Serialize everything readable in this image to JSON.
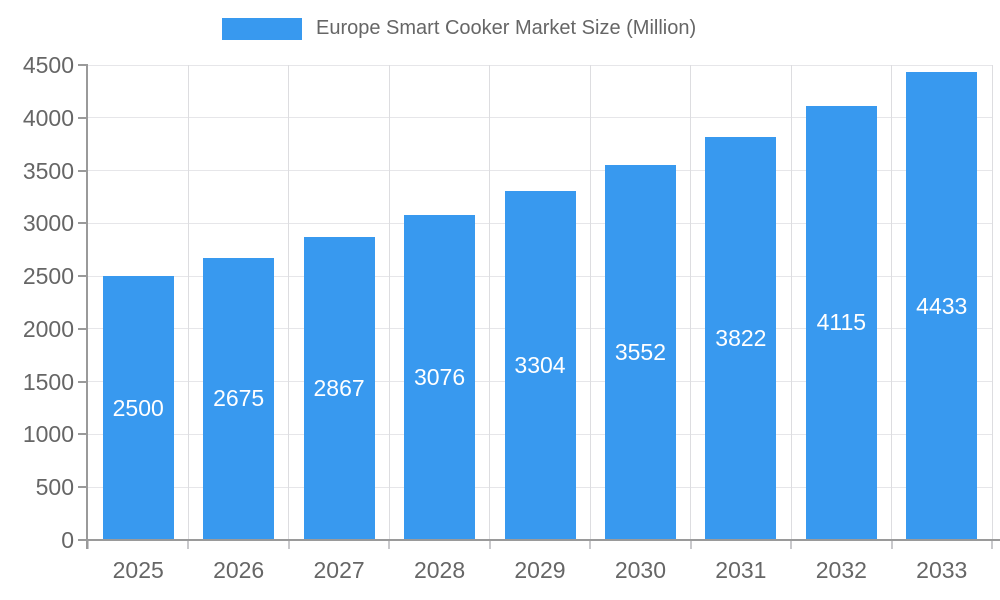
{
  "chart_data": {
    "type": "bar",
    "title": "Europe Smart Cooker Market Size (Million)",
    "categories": [
      "2025",
      "2026",
      "2027",
      "2028",
      "2029",
      "2030",
      "2031",
      "2032",
      "2033"
    ],
    "values": [
      2500,
      2675,
      2867,
      3076,
      3304,
      3552,
      3822,
      4115,
      4433
    ],
    "xlabel": "",
    "ylabel": "",
    "ylim": [
      0,
      4500
    ],
    "ytick_step": 500,
    "grid": true,
    "legend_position": "top",
    "legend_label": "Europe Smart Cooker Market Size (Million)",
    "bar_color": "#3899EF",
    "value_label_color": "#FFFFFF",
    "axis_text_color": "#666666",
    "axis_line_color": "#9A9A9A",
    "h_gridline_color": "#E6E6E9",
    "v_gridline_color": "#DDDDE0"
  }
}
